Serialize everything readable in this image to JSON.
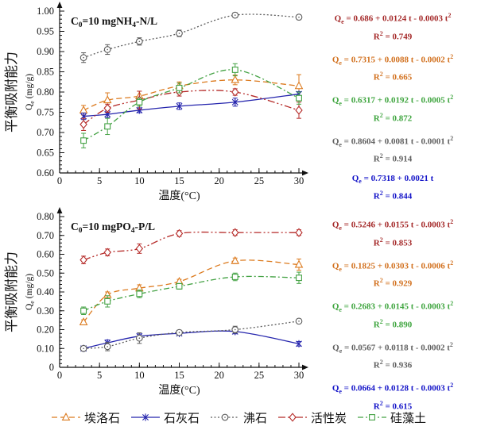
{
  "figure": {
    "legend": [
      {
        "key": "halloysite",
        "label": "埃洛石",
        "color": "#DC7A1E",
        "marker": "triangle",
        "dash": "7,4"
      },
      {
        "key": "limestone",
        "label": "石灰石",
        "color": "#2525AD",
        "marker": "star",
        "dash": ""
      },
      {
        "key": "zeolite",
        "label": "沸石",
        "color": "#5C5C5C",
        "marker": "circle-dot",
        "dash": "2,2.5"
      },
      {
        "key": "activated-carbon",
        "label": "活性炭",
        "color": "#B52A28",
        "marker": "diamond",
        "dash": "9,3,2,3,2,3"
      },
      {
        "key": "diatomite",
        "label": "硅藻土",
        "color": "#44A244",
        "marker": "square",
        "dash": "7,3,2,3"
      }
    ]
  },
  "chart_data": [
    {
      "type": "line",
      "title": "C₀=10 mgNH₄-N/L",
      "xlabel": "温度(°C)",
      "ylabel": "平衡吸附能力",
      "ylabel_unit": "Qe (mg/g)",
      "xlim": [
        0,
        30
      ],
      "xticks": [
        0,
        5,
        10,
        15,
        20,
        25,
        30
      ],
      "xtick_labels": [
        "0",
        "5",
        "10",
        "15",
        "20",
        "25",
        "30"
      ],
      "x_minor_step": 1,
      "ylim": [
        0.6,
        1.0
      ],
      "yticks": [
        0.6,
        0.65,
        0.7,
        0.75,
        0.8,
        0.85,
        0.9,
        0.95,
        1.0
      ],
      "ytick_labels": [
        "0.60",
        "0.65",
        "0.70",
        "0.75",
        "0.80",
        "0.85",
        "0.90",
        "0.95",
        "1.00"
      ],
      "y_minor_step": 0.01,
      "x": [
        3,
        6,
        10,
        15,
        22,
        30
      ],
      "series": [
        {
          "key": "halloysite",
          "name": "埃洛石",
          "color": "#DC7A1E",
          "marker": "triangle",
          "dash": "7,4",
          "values": [
            0.755,
            0.78,
            0.79,
            0.815,
            0.83,
            0.815
          ],
          "errors": [
            0.012,
            0.018,
            0.012,
            0.01,
            0.012,
            0.028
          ]
        },
        {
          "key": "limestone",
          "name": "石灰石",
          "color": "#2525AD",
          "marker": "star",
          "dash": "",
          "values": [
            0.74,
            0.745,
            0.755,
            0.765,
            0.775,
            0.795
          ],
          "errors": [
            0.008,
            0.008,
            0.006,
            0.008,
            0.01,
            0.006
          ]
        },
        {
          "key": "zeolite",
          "name": "沸石",
          "color": "#5C5C5C",
          "marker": "circle-dot",
          "dash": "2,2.5",
          "values": [
            0.885,
            0.905,
            0.925,
            0.945,
            0.99,
            0.985
          ],
          "errors": [
            0.012,
            0.012,
            0.009,
            0.008,
            0.006,
            0.006
          ]
        },
        {
          "key": "activated-carbon",
          "name": "活性炭",
          "color": "#B52A28",
          "marker": "diamond",
          "dash": "9,3,2,3,2,3",
          "values": [
            0.72,
            0.76,
            0.78,
            0.8,
            0.8,
            0.755
          ],
          "errors": [
            0.015,
            0.01,
            0.022,
            0.01,
            0.008,
            0.02
          ]
        },
        {
          "key": "diatomite",
          "name": "硅藻土",
          "color": "#44A244",
          "marker": "square",
          "dash": "7,3,2,3",
          "values": [
            0.68,
            0.715,
            0.775,
            0.81,
            0.855,
            0.785
          ],
          "errors": [
            0.018,
            0.02,
            0.01,
            0.012,
            0.015,
            0.015
          ]
        }
      ],
      "equations": [
        {
          "formula": "Qe = 0.686 + 0.0124 t - 0.0003 t²",
          "r2": "R² = 0.749",
          "color": "#A52A2A"
        },
        {
          "formula": "Qe = 0.7315 + 0.0088 t - 0.0002 t²",
          "r2": "R² = 0.665",
          "color": "#D2711F"
        },
        {
          "formula": "Qe = 0.6317 + 0.0192 t - 0.0005 t²",
          "r2": "R² = 0.872",
          "color": "#3FA53F"
        },
        {
          "formula": "Qe = 0.8604 + 0.0081 t - 0.0001 t²",
          "r2": "R² = 0.914",
          "color": "#606060"
        },
        {
          "formula": "Qe = 0.7318 + 0.0021 t",
          "r2": "R² = 0.844",
          "color": "#1414C8"
        }
      ]
    },
    {
      "type": "line",
      "title": "C₀=10 mgPO₄-P/L",
      "xlabel": "温度(°C)",
      "ylabel": "平衡吸附能力",
      "ylabel_unit": "Qe (mg/g)",
      "xlim": [
        0,
        30
      ],
      "xticks": [
        0,
        5,
        10,
        15,
        20,
        25,
        30
      ],
      "xtick_labels": [
        "0",
        "5",
        "10",
        "15",
        "20",
        "25",
        "30"
      ],
      "x_minor_step": 1,
      "ylim": [
        0,
        0.8
      ],
      "yticks": [
        0,
        0.1,
        0.2,
        0.3,
        0.4,
        0.5,
        0.6,
        0.7,
        0.8
      ],
      "ytick_labels": [
        "0",
        "0.10",
        "0.20",
        "0.30",
        "0.40",
        "0.50",
        "0.60",
        "0.70",
        "0.80"
      ],
      "y_minor_step": 0.02,
      "x": [
        3,
        6,
        10,
        15,
        22,
        30
      ],
      "series": [
        {
          "key": "halloysite",
          "name": "埃洛石",
          "color": "#DC7A1E",
          "marker": "triangle",
          "dash": "7,4",
          "values": [
            0.24,
            0.385,
            0.42,
            0.455,
            0.565,
            0.545
          ],
          "errors": [
            0.012,
            0.015,
            0.018,
            0.012,
            0.015,
            0.03
          ]
        },
        {
          "key": "limestone",
          "name": "石灰石",
          "color": "#2525AD",
          "marker": "star",
          "dash": "",
          "values": [
            0.1,
            0.13,
            0.165,
            0.18,
            0.19,
            0.125
          ],
          "errors": [
            0.01,
            0.015,
            0.012,
            0.01,
            0.012,
            0.012
          ]
        },
        {
          "key": "zeolite",
          "name": "沸石",
          "color": "#5C5C5C",
          "marker": "circle-dot",
          "dash": "2,2.5",
          "values": [
            0.1,
            0.11,
            0.155,
            0.185,
            0.2,
            0.245
          ],
          "errors": [
            0.012,
            0.022,
            0.028,
            0.012,
            0.018,
            0.012
          ]
        },
        {
          "key": "activated-carbon",
          "name": "活性炭",
          "color": "#B52A28",
          "marker": "diamond",
          "dash": "9,3,2,3,2,3",
          "values": [
            0.57,
            0.61,
            0.63,
            0.71,
            0.715,
            0.715
          ],
          "errors": [
            0.02,
            0.018,
            0.025,
            0.015,
            0.015,
            0.015
          ]
        },
        {
          "key": "diatomite",
          "name": "硅藻土",
          "color": "#44A244",
          "marker": "square",
          "dash": "7,3,2,3",
          "values": [
            0.3,
            0.35,
            0.39,
            0.43,
            0.48,
            0.475
          ],
          "errors": [
            0.02,
            0.03,
            0.02,
            0.015,
            0.02,
            0.03
          ]
        }
      ],
      "equations": [
        {
          "formula": "Qe = 0.5246 + 0.0155 t - 0.0003 t²",
          "r2": "R² = 0.853",
          "color": "#A52A2A"
        },
        {
          "formula": "Qe = 0.1825 + 0.0303 t - 0.0006 t²",
          "r2": "R² = 0.929",
          "color": "#D2711F"
        },
        {
          "formula": "Qe = 0.2683 + 0.0145 t - 0.0003 t²",
          "r2": "R² = 0.890",
          "color": "#3FA53F"
        },
        {
          "formula": "Qe = 0.0567 + 0.0118 t - 0.0002 t²",
          "r2": "R² = 0.936",
          "color": "#606060"
        },
        {
          "formula": "Qe = 0.0664 + 0.0128 t - 0.0003 t²",
          "r2": "R² = 0.615",
          "color": "#1414C8"
        }
      ]
    }
  ]
}
